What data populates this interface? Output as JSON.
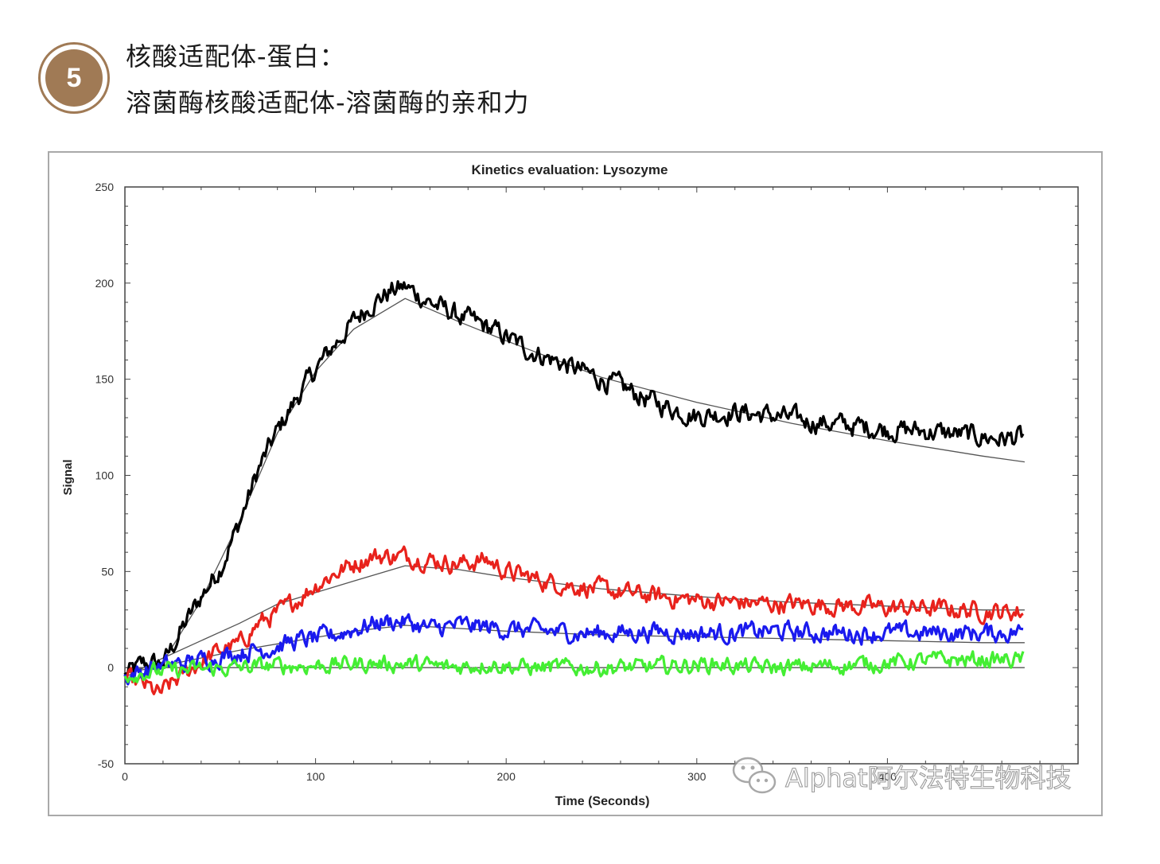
{
  "header": {
    "step_number": "5",
    "title_line1": "核酸适配体-蛋白：",
    "title_line2": "溶菌酶核酸适配体-溶菌酶的亲和力"
  },
  "watermark": {
    "icon": "wechat-icon",
    "text": "Alphat阿尔法特生物科技"
  },
  "chart_data": {
    "type": "line",
    "title": "Kinetics evaluation: Lysozyme",
    "xlabel": "Time (Seconds)",
    "ylabel": "Signal",
    "xlim": [
      0,
      500
    ],
    "ylim": [
      -50,
      250
    ],
    "x_ticks": [
      0,
      100,
      200,
      300,
      400
    ],
    "x_tick_labels": [
      "0",
      "100",
      "200",
      "300",
      "400"
    ],
    "y_ticks": [
      -50,
      0,
      50,
      100,
      150,
      200,
      250
    ],
    "y_tick_labels": [
      "-50",
      "0",
      "50",
      "100",
      "150",
      "200",
      "250"
    ],
    "grid": false,
    "legend": "none",
    "association_end_x": 147,
    "end_x": 472,
    "series": [
      {
        "color": "#000000",
        "points": [
          [
            0,
            -4
          ],
          [
            10,
            2
          ],
          [
            20,
            2
          ],
          [
            30,
            20
          ],
          [
            40,
            37
          ],
          [
            50,
            52
          ],
          [
            60,
            75
          ],
          [
            70,
            103
          ],
          [
            80,
            123
          ],
          [
            90,
            140
          ],
          [
            100,
            155
          ],
          [
            110,
            168
          ],
          [
            120,
            180
          ],
          [
            130,
            190
          ],
          [
            140,
            196
          ],
          [
            147,
            198
          ],
          [
            160,
            190
          ],
          [
            175,
            183
          ],
          [
            190,
            177
          ],
          [
            200,
            172
          ],
          [
            210,
            166
          ],
          [
            225,
            160
          ],
          [
            240,
            154
          ],
          [
            260,
            146
          ],
          [
            280,
            137
          ],
          [
            300,
            131
          ],
          [
            320,
            133
          ],
          [
            340,
            131
          ],
          [
            360,
            128
          ],
          [
            380,
            126
          ],
          [
            400,
            124
          ],
          [
            420,
            123
          ],
          [
            440,
            121
          ],
          [
            460,
            119
          ],
          [
            472,
            120
          ]
        ],
        "fit": [
          [
            0,
            -3
          ],
          [
            20,
            3
          ],
          [
            40,
            35
          ],
          [
            60,
            76
          ],
          [
            80,
            122
          ],
          [
            100,
            154
          ],
          [
            120,
            176
          ],
          [
            147,
            192
          ],
          [
            175,
            180
          ],
          [
            200,
            170
          ],
          [
            250,
            151
          ],
          [
            300,
            138
          ],
          [
            350,
            127
          ],
          [
            400,
            118
          ],
          [
            450,
            110
          ],
          [
            472,
            107
          ]
        ]
      },
      {
        "color": "#e8221c",
        "points": [
          [
            0,
            -6
          ],
          [
            10,
            -9
          ],
          [
            18,
            -14
          ],
          [
            30,
            -4
          ],
          [
            40,
            3
          ],
          [
            50,
            9
          ],
          [
            60,
            12
          ],
          [
            70,
            23
          ],
          [
            80,
            28
          ],
          [
            90,
            35
          ],
          [
            100,
            43
          ],
          [
            110,
            49
          ],
          [
            120,
            54
          ],
          [
            130,
            58
          ],
          [
            147,
            58
          ],
          [
            160,
            56
          ],
          [
            175,
            54
          ],
          [
            190,
            56
          ],
          [
            200,
            50
          ],
          [
            220,
            45
          ],
          [
            240,
            42
          ],
          [
            260,
            39
          ],
          [
            280,
            37
          ],
          [
            300,
            35
          ],
          [
            320,
            34
          ],
          [
            340,
            33
          ],
          [
            360,
            33
          ],
          [
            380,
            32
          ],
          [
            400,
            31
          ],
          [
            420,
            31
          ],
          [
            440,
            30
          ],
          [
            460,
            29
          ],
          [
            472,
            29
          ]
        ],
        "fit": [
          [
            0,
            -5
          ],
          [
            20,
            5
          ],
          [
            40,
            14
          ],
          [
            60,
            23
          ],
          [
            80,
            33
          ],
          [
            100,
            39
          ],
          [
            120,
            45
          ],
          [
            147,
            53
          ],
          [
            175,
            51
          ],
          [
            200,
            47
          ],
          [
            250,
            41
          ],
          [
            300,
            37
          ],
          [
            350,
            34
          ],
          [
            400,
            32
          ],
          [
            450,
            30
          ],
          [
            472,
            30
          ]
        ]
      },
      {
        "color": "#1a1aee",
        "points": [
          [
            0,
            -5
          ],
          [
            15,
            0
          ],
          [
            30,
            2
          ],
          [
            45,
            5
          ],
          [
            60,
            8
          ],
          [
            75,
            10
          ],
          [
            90,
            14
          ],
          [
            100,
            15
          ],
          [
            110,
            17
          ],
          [
            120,
            20
          ],
          [
            135,
            24
          ],
          [
            147,
            24
          ],
          [
            160,
            20
          ],
          [
            175,
            22
          ],
          [
            190,
            21
          ],
          [
            200,
            20
          ],
          [
            220,
            19
          ],
          [
            240,
            18
          ],
          [
            260,
            18
          ],
          [
            280,
            19
          ],
          [
            300,
            18
          ],
          [
            320,
            18
          ],
          [
            340,
            19
          ],
          [
            360,
            18
          ],
          [
            380,
            18
          ],
          [
            400,
            18
          ],
          [
            420,
            18
          ],
          [
            440,
            18
          ],
          [
            460,
            18
          ],
          [
            472,
            19
          ]
        ],
        "fit": [
          [
            0,
            -3
          ],
          [
            30,
            3
          ],
          [
            60,
            9
          ],
          [
            90,
            14
          ],
          [
            120,
            19
          ],
          [
            147,
            22
          ],
          [
            200,
            19
          ],
          [
            250,
            17
          ],
          [
            300,
            16
          ],
          [
            350,
            15
          ],
          [
            400,
            14
          ],
          [
            450,
            13
          ],
          [
            472,
            13
          ]
        ]
      },
      {
        "color": "#44ee33",
        "points": [
          [
            0,
            -3
          ],
          [
            20,
            -2
          ],
          [
            40,
            -1
          ],
          [
            60,
            0
          ],
          [
            80,
            1
          ],
          [
            100,
            1
          ],
          [
            120,
            2
          ],
          [
            147,
            2
          ],
          [
            170,
            0
          ],
          [
            190,
            2
          ],
          [
            210,
            0
          ],
          [
            230,
            0
          ],
          [
            250,
            0
          ],
          [
            270,
            0
          ],
          [
            290,
            1
          ],
          [
            310,
            2
          ],
          [
            330,
            0
          ],
          [
            350,
            0
          ],
          [
            370,
            1
          ],
          [
            390,
            2
          ],
          [
            410,
            3
          ],
          [
            430,
            4
          ],
          [
            450,
            4
          ],
          [
            472,
            4
          ]
        ],
        "fit": [
          [
            0,
            0
          ],
          [
            472,
            0
          ]
        ]
      }
    ]
  }
}
